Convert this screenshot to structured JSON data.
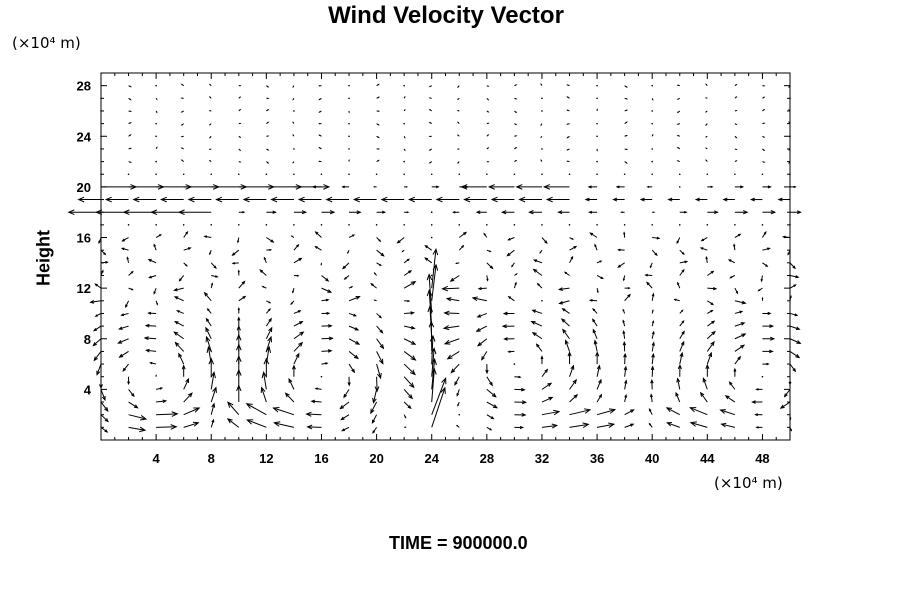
{
  "chart_data": {
    "type": "quiver",
    "title": "Wind Velocity Vector",
    "ylabel": "Height",
    "xlabel": "",
    "x_unit_label": "(×10⁴ m)",
    "y_unit_label": "(×10⁴ m)",
    "xlim": [
      0,
      50
    ],
    "ylim": [
      0,
      29
    ],
    "xticks": [
      4,
      8,
      12,
      16,
      20,
      24,
      28,
      32,
      36,
      40,
      44,
      48
    ],
    "yticks": [
      4,
      8,
      12,
      16,
      20,
      24,
      28
    ],
    "grid": false,
    "footer": "TIME = 900000.0",
    "arrow_color": "#000000",
    "vector_field": {
      "x_start": 0,
      "x_step": 2,
      "x_count": 26,
      "y_start": 1,
      "y_step": 1,
      "y_count": 28,
      "description": "u,v components on a regular grid; strong upward jet near x=24, recirculating cells near the ground, strong horizontal flow near heights 18-20, nearly calm above 21"
    }
  }
}
